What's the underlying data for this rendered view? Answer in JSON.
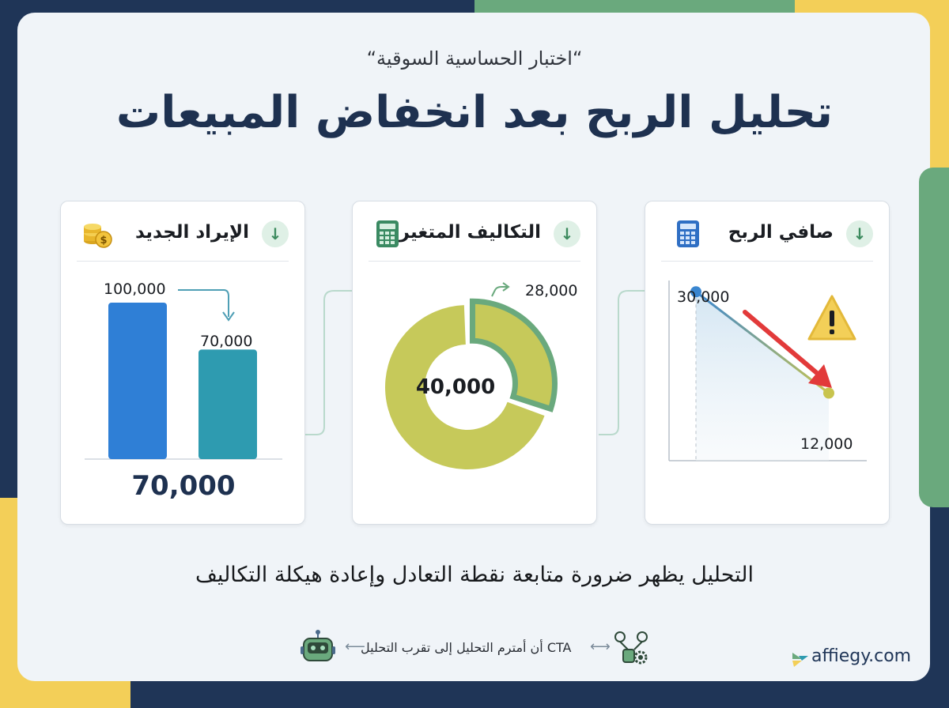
{
  "subtitle": "“اختبار الحساسية السوقية“",
  "title": "تحليل الربح بعد انخفاض المبيعات",
  "cards": {
    "revenue": {
      "title": "الإيراد الجديد",
      "icon": "coins-icon",
      "before_value": "100,000",
      "after_value": "70,000",
      "total": "70,000",
      "bars": [
        100000,
        70000
      ],
      "bar_colors": [
        "#2f7fd6",
        "#2e9bb0"
      ]
    },
    "costs": {
      "title": "التكاليف المتغيرة",
      "icon": "calculator-icon",
      "center_value": "40,000",
      "callout_value": "28,000",
      "ring_color": "#c6c95a",
      "highlight_stroke": "#6aa97d"
    },
    "profit": {
      "title": "صافي الربح",
      "icon": "calculator-icon",
      "start_value": "30,000",
      "end_value": "12,000",
      "line": [
        30000,
        12000
      ],
      "warning_icon": "warning-icon",
      "trend_icon": "down-arrow-icon"
    }
  },
  "bottom_text": "التحليل يظهر ضرورة متابعة نقطة التعادل وإعادة هيكلة التكاليف",
  "cta": {
    "text": "CTA أن أمترم التحليل إلى تقرب التحليل"
  },
  "brand": "affiegy.com",
  "colors": {
    "navy": "#1f3557",
    "green": "#6aa97d",
    "yellow": "#f3cf58"
  }
}
